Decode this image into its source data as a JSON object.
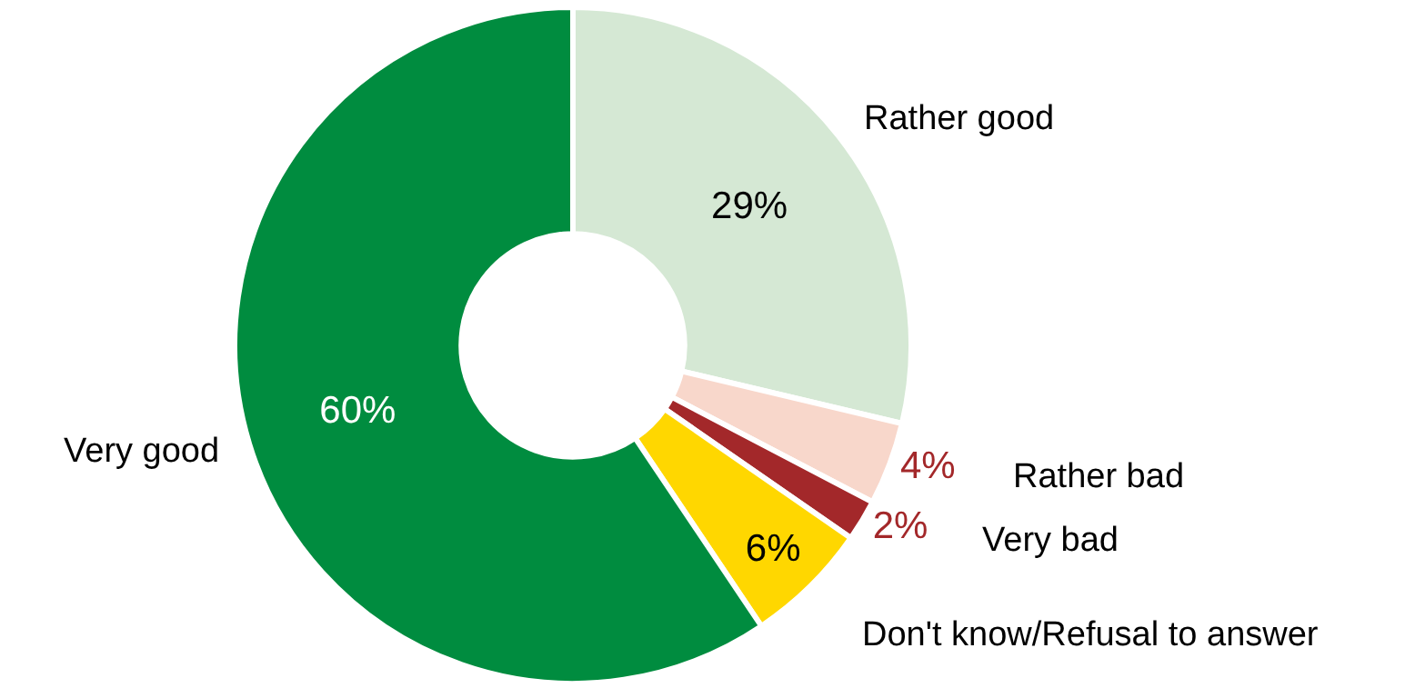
{
  "chart_data": {
    "type": "donut",
    "categories": [
      "Rather good",
      "Rather bad",
      "Very bad",
      "Don't know/Refusal to answer",
      "Very good"
    ],
    "values": [
      29,
      4,
      2,
      6,
      60
    ],
    "colors": [
      "#d5e8d4",
      "#f8d7cb",
      "#a3282a",
      "#ffd700",
      "#008c3f"
    ],
    "value_labels": [
      "29%",
      "4%",
      "2%",
      "6%",
      "60%"
    ],
    "legend": false
  }
}
